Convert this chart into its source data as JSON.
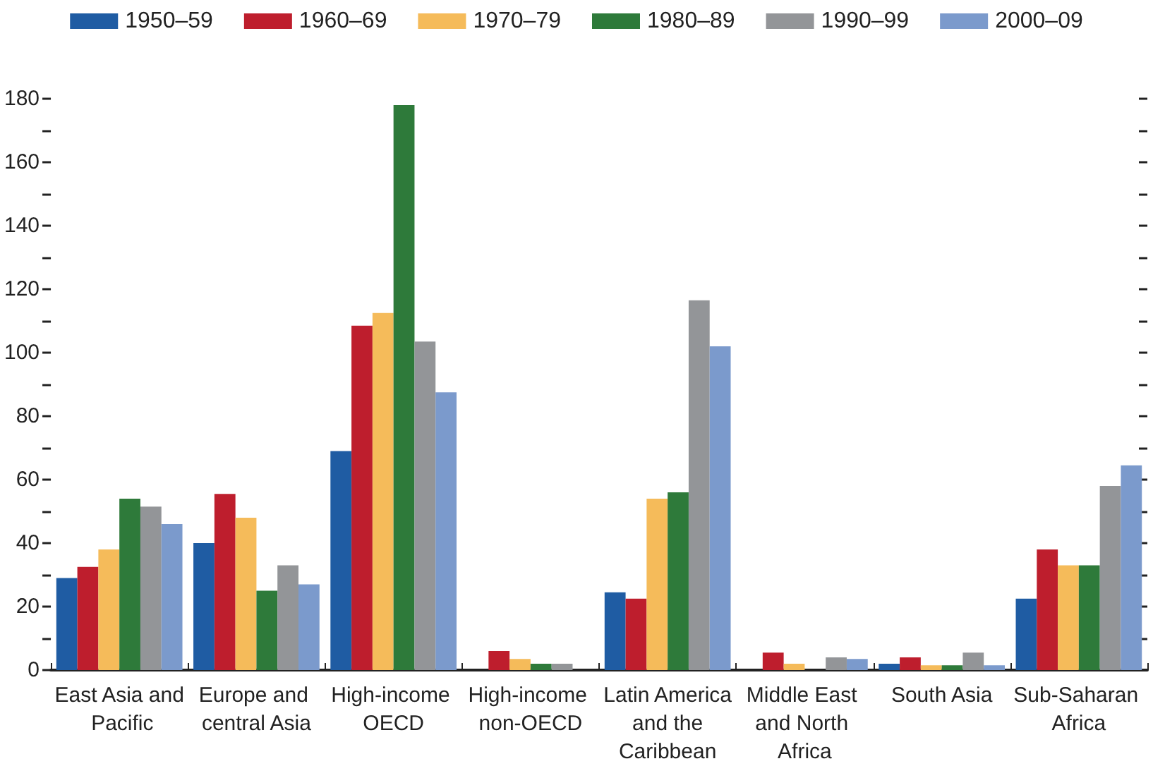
{
  "chart_data": {
    "type": "bar",
    "categories": [
      "East Asia and Pacific",
      "Europe and central Asia",
      "High-income OECD",
      "High-income non-OECD",
      "Latin America and the Caribbean",
      "Middle East and North Africa",
      "South Asia",
      "Sub-Saharan Africa"
    ],
    "series": [
      {
        "name": "1950–59",
        "color": "#1f5ca3",
        "values": [
          29,
          40,
          69,
          0,
          24.5,
          0,
          2,
          22.5
        ]
      },
      {
        "name": "1960–69",
        "color": "#be1e2d",
        "values": [
          32.5,
          55.5,
          108.5,
          6,
          22.5,
          5.5,
          4,
          38
        ]
      },
      {
        "name": "1970–79",
        "color": "#f5bb5a",
        "values": [
          38,
          48,
          112.5,
          3.5,
          54,
          2,
          1.5,
          33
        ]
      },
      {
        "name": "1980–89",
        "color": "#2e7a3a",
        "values": [
          54,
          25,
          178,
          2,
          56,
          0,
          1.5,
          33
        ]
      },
      {
        "name": "1990–99",
        "color": "#939598",
        "values": [
          51.5,
          33,
          103.5,
          2,
          116.5,
          4,
          5.5,
          58
        ]
      },
      {
        "name": "2000–09",
        "color": "#7b9acc",
        "values": [
          46,
          27,
          87.5,
          0,
          102,
          3.5,
          1.5,
          64.5
        ]
      }
    ],
    "ylim": [
      0,
      180
    ],
    "yticks": [
      0,
      {
        "value": 10,
        "label": null
      },
      20,
      {
        "value": 30,
        "label": null
      },
      40,
      {
        "value": 50,
        "label": null
      },
      60,
      {
        "value": 70,
        "label": null
      },
      80,
      {
        "value": 90,
        "label": null
      },
      100,
      {
        "value": 110,
        "label": null
      },
      120,
      {
        "value": 130,
        "label": null
      },
      140,
      {
        "value": 150,
        "label": null
      },
      160,
      {
        "value": 170,
        "label": null
      },
      180
    ],
    "legend": "top",
    "grid": false
  }
}
